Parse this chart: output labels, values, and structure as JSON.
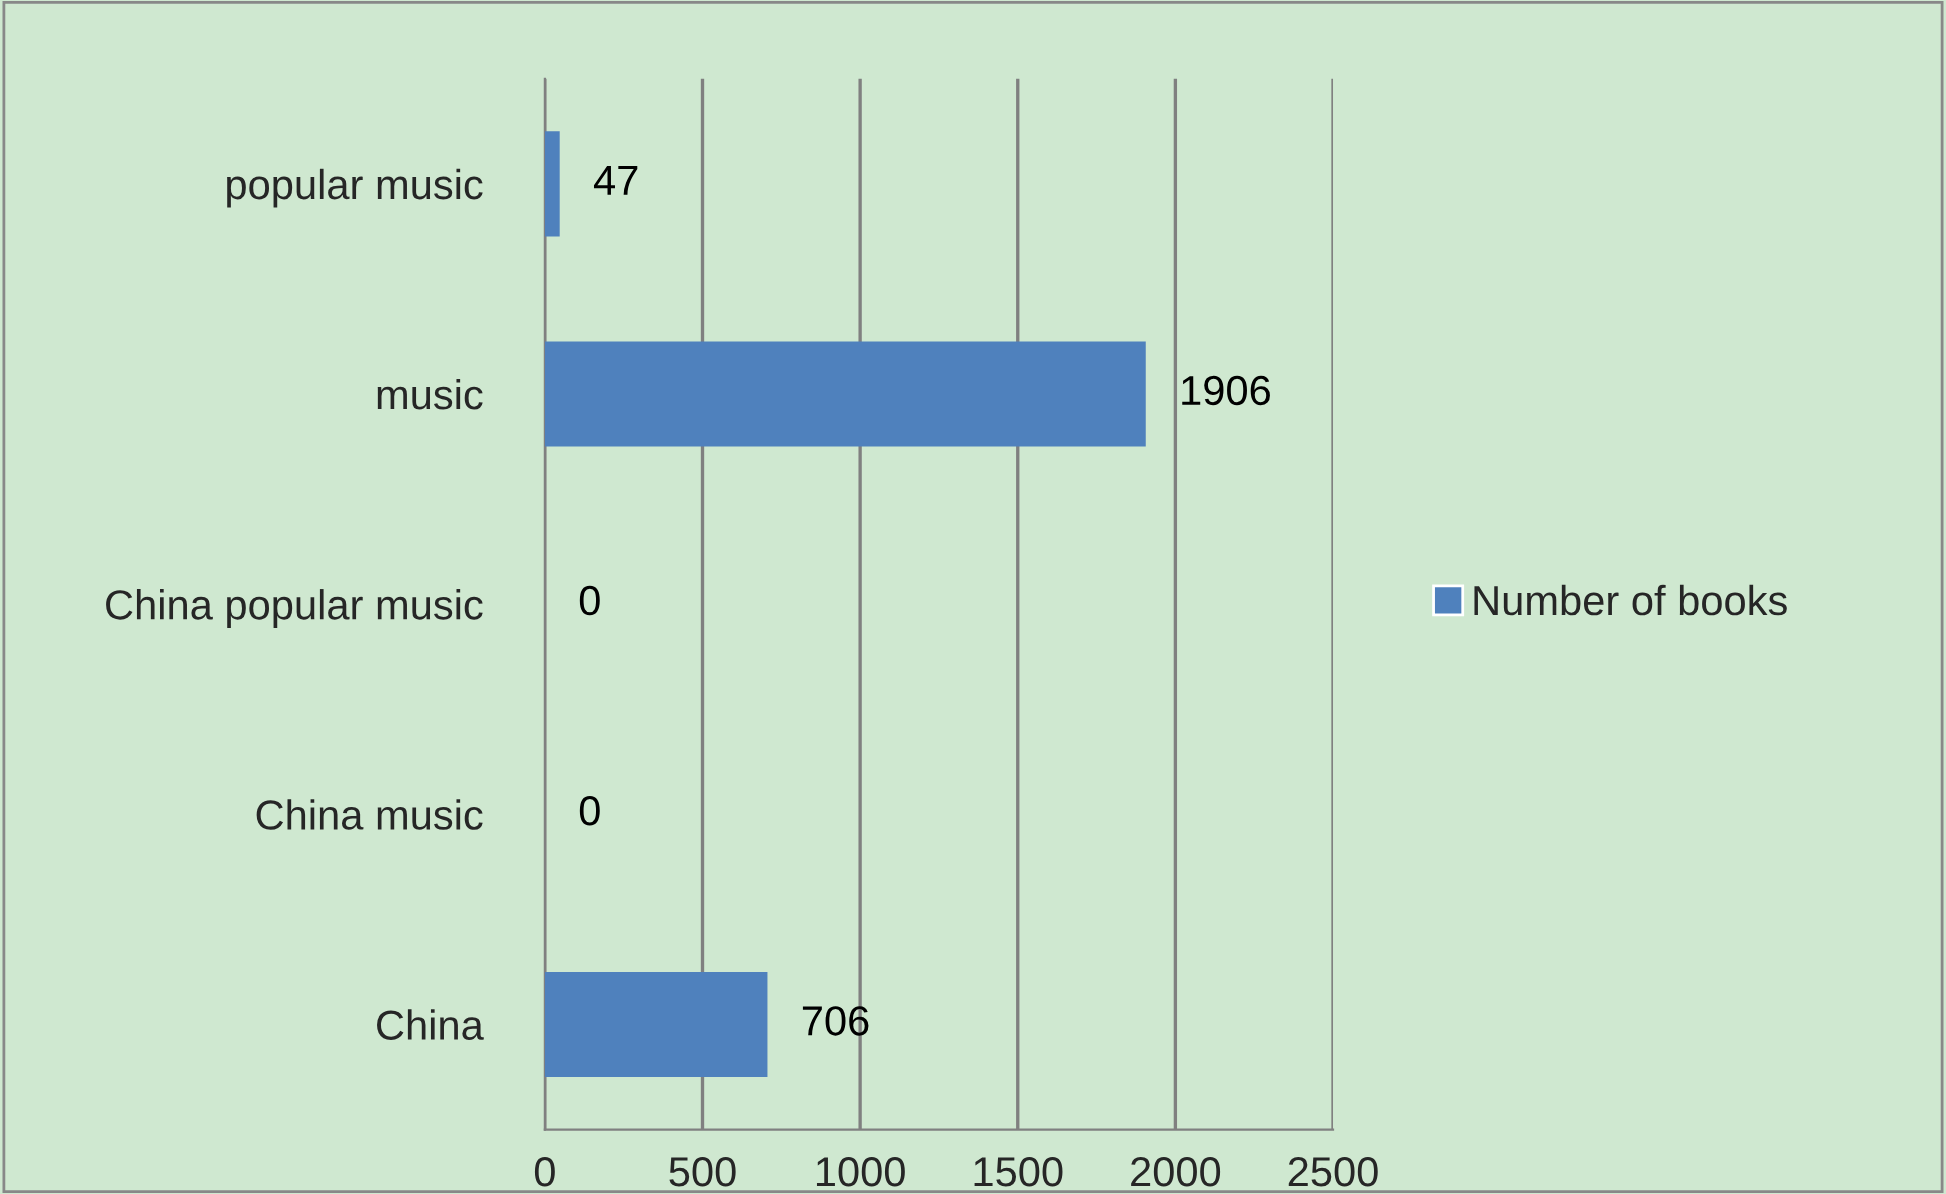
{
  "chart_data": {
    "type": "bar",
    "orientation": "horizontal",
    "categories": [
      "popular music",
      "music",
      "China popular music",
      "China music",
      "China"
    ],
    "series": [
      {
        "name": "Number of books",
        "color": "#4f81bd",
        "values": [
          47,
          1906,
          0,
          0,
          706
        ]
      }
    ],
    "xlim": [
      0,
      2500
    ],
    "xticks": [
      0,
      500,
      1000,
      1500,
      2000,
      2500
    ],
    "grid": "x",
    "legend": "right",
    "data_labels": true
  }
}
